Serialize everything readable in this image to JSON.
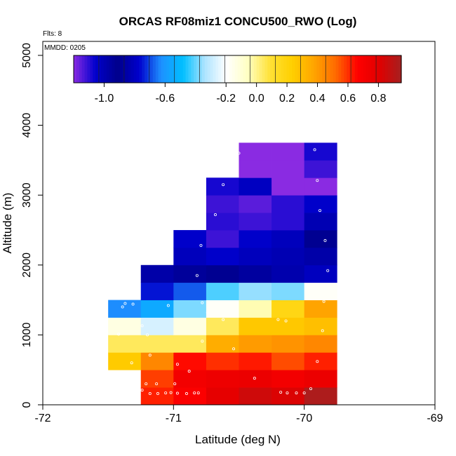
{
  "chart_data": {
    "type": "heatmap",
    "title": "ORCAS RF08miz1 CONCU500_RWO (Log)",
    "flights_label": "Flts: 8",
    "date_label": "MMDD: 0205",
    "xlabel": "Latitude (deg N)",
    "ylabel": "Altitude (m)",
    "xlim": [
      -72,
      -69
    ],
    "ylim": [
      0,
      5200
    ],
    "x_ticks": [
      -72,
      -71,
      -70,
      -69
    ],
    "x_tick_labels": [
      "-72",
      "-71",
      "-70",
      "-69"
    ],
    "y_ticks": [
      0,
      1000,
      2000,
      3000,
      4000,
      5000
    ],
    "y_tick_labels": [
      "0",
      "1000",
      "2000",
      "3000",
      "4000",
      "5000"
    ],
    "lat_bin_width": 0.25,
    "alt_bin_height": 250,
    "lat_bin_starts": [
      -71.5,
      -71.25,
      -71.0,
      -70.75,
      -70.5,
      -70.25,
      -70.0
    ],
    "colorbar": {
      "min": -1.2,
      "max": 0.95,
      "tick_values": [
        -1.0,
        -0.6,
        -0.2,
        0.0,
        0.2,
        0.4,
        0.6,
        0.8
      ],
      "tick_labels": [
        "-1.0",
        "-0.6",
        "-0.2",
        "0.0",
        "0.2",
        "0.4",
        "0.6",
        "0.8"
      ],
      "colors": [
        "#8A2BE2",
        "#0000CD",
        "#00008B",
        "#0000CD",
        "#1E90FF",
        "#00BFFF",
        "#AEE4FF",
        "#FFFFFF",
        "#FFFFC0",
        "#FFE135",
        "#FFD000",
        "#FFA500",
        "#FF6A00",
        "#FF0000",
        "#E00000",
        "#A52020"
      ]
    },
    "cells": [
      {
        "alt_bin": 0,
        "values": [
          null,
          0.62,
          0.68,
          0.78,
          0.85,
          0.82,
          0.93
        ]
      },
      {
        "alt_bin": 250,
        "values": [
          null,
          0.58,
          0.72,
          0.74,
          0.75,
          0.72,
          0.75
        ]
      },
      {
        "alt_bin": 500,
        "values": [
          0.25,
          0.45,
          0.65,
          0.6,
          0.63,
          0.56,
          0.62
        ]
      },
      {
        "alt_bin": 750,
        "values": [
          0.05,
          0.05,
          0.05,
          0.35,
          0.4,
          0.42,
          0.45
        ]
      },
      {
        "alt_bin": 1000,
        "values": [
          -0.13,
          -0.27,
          -0.13,
          0.05,
          0.26,
          0.26,
          0.29
        ]
      },
      {
        "alt_bin": 1250,
        "values": [
          -0.63,
          -0.55,
          -0.38,
          -0.18,
          -0.04,
          0.18,
          0.38
        ]
      },
      {
        "alt_bin": 1500,
        "values": [
          null,
          -0.75,
          -0.68,
          -0.42,
          -0.36,
          -0.38,
          -0.18
        ]
      },
      {
        "alt_bin": 1750,
        "values": [
          null,
          -0.85,
          -0.88,
          -0.9,
          -0.87,
          -0.84,
          -0.8
        ]
      },
      {
        "alt_bin": 2000,
        "values": [
          null,
          null,
          -1.02,
          -1.05,
          -1.02,
          -1.0,
          -0.85
        ]
      },
      {
        "alt_bin": 2250,
        "values": [
          null,
          null,
          -1.05,
          -1.12,
          -1.05,
          -1.02,
          -0.9
        ]
      },
      {
        "alt_bin": 2500,
        "values": [
          null,
          null,
          null,
          -1.1,
          -1.12,
          -1.1,
          -1.0
        ]
      },
      {
        "alt_bin": 2750,
        "values": [
          null,
          null,
          null,
          -1.12,
          -1.15,
          -1.1,
          -1.05
        ]
      },
      {
        "alt_bin": 3000,
        "values": [
          null,
          null,
          null,
          -1.08,
          -1.03,
          -1.2,
          -1.3
        ]
      },
      {
        "alt_bin": 3250,
        "values": [
          null,
          null,
          null,
          null,
          -1.23,
          -1.3,
          -1.12
        ]
      },
      {
        "alt_bin": 3500,
        "values": [
          null,
          null,
          null,
          null,
          -1.22,
          -1.2,
          -1.08
        ]
      }
    ],
    "sample_points": [
      {
        "lat": -71.37,
        "alt": 1450
      },
      {
        "lat": -71.31,
        "alt": 1440
      },
      {
        "lat": -71.39,
        "alt": 1400
      },
      {
        "lat": -71.24,
        "alt": 1130
      },
      {
        "lat": -71.2,
        "alt": 1000
      },
      {
        "lat": -71.42,
        "alt": 1010
      },
      {
        "lat": -71.32,
        "alt": 600
      },
      {
        "lat": -71.18,
        "alt": 710
      },
      {
        "lat": -71.04,
        "alt": 1420
      },
      {
        "lat": -70.97,
        "alt": 580
      },
      {
        "lat": -70.88,
        "alt": 480
      },
      {
        "lat": -70.78,
        "alt": 1460
      },
      {
        "lat": -70.74,
        "alt": 1320
      },
      {
        "lat": -70.62,
        "alt": 1220
      },
      {
        "lat": -70.78,
        "alt": 910
      },
      {
        "lat": -70.54,
        "alt": 800
      },
      {
        "lat": -70.38,
        "alt": 380
      },
      {
        "lat": -70.2,
        "alt": 1220
      },
      {
        "lat": -70.14,
        "alt": 1200
      },
      {
        "lat": -69.85,
        "alt": 1480
      },
      {
        "lat": -69.86,
        "alt": 1060
      },
      {
        "lat": -69.9,
        "alt": 620
      },
      {
        "lat": -69.95,
        "alt": 230
      },
      {
        "lat": -71.24,
        "alt": 210
      },
      {
        "lat": -71.18,
        "alt": 160
      },
      {
        "lat": -71.12,
        "alt": 160
      },
      {
        "lat": -71.06,
        "alt": 170
      },
      {
        "lat": -71.02,
        "alt": 175
      },
      {
        "lat": -70.97,
        "alt": 165
      },
      {
        "lat": -70.9,
        "alt": 160
      },
      {
        "lat": -70.84,
        "alt": 170
      },
      {
        "lat": -70.81,
        "alt": 170
      },
      {
        "lat": -71.13,
        "alt": 300
      },
      {
        "lat": -70.99,
        "alt": 300
      },
      {
        "lat": -71.21,
        "alt": 300
      },
      {
        "lat": -70.18,
        "alt": 180
      },
      {
        "lat": -70.13,
        "alt": 170
      },
      {
        "lat": -70.06,
        "alt": 170
      },
      {
        "lat": -70.0,
        "alt": 170
      },
      {
        "lat": -70.82,
        "alt": 1850
      },
      {
        "lat": -70.79,
        "alt": 2280
      },
      {
        "lat": -70.68,
        "alt": 2720
      },
      {
        "lat": -70.62,
        "alt": 3150
      },
      {
        "lat": -70.5,
        "alt": 3600
      },
      {
        "lat": -69.92,
        "alt": 3650
      },
      {
        "lat": -69.9,
        "alt": 3210
      },
      {
        "lat": -69.88,
        "alt": 2780
      },
      {
        "lat": -69.84,
        "alt": 2350
      },
      {
        "lat": -69.82,
        "alt": 1920
      }
    ]
  }
}
